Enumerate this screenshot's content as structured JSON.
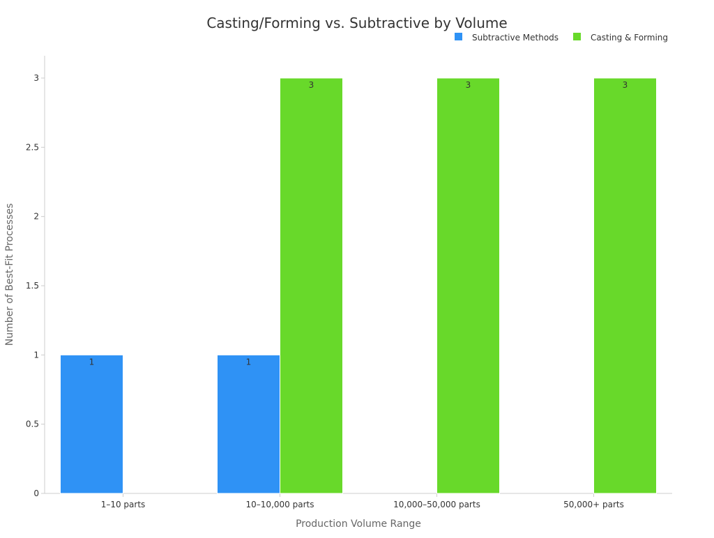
{
  "chart_data": {
    "type": "bar",
    "title": "Casting/Forming vs. Subtractive by Volume",
    "xlabel": "Production Volume Range",
    "ylabel": "Number of Best-Fit Processes",
    "categories": [
      "1–10 parts",
      "10–10,000 parts",
      "10,000–50,000 parts",
      "50,000+ parts"
    ],
    "series": [
      {
        "name": "Subtractive Methods",
        "color": "#2f92f5",
        "values": [
          1,
          1,
          0,
          0
        ]
      },
      {
        "name": "Casting & Forming",
        "color": "#68d92a",
        "values": [
          0,
          3,
          3,
          3
        ]
      }
    ],
    "ylim": [
      0,
      3
    ],
    "yticks": [
      "0",
      "0.5",
      "1",
      "1.5",
      "2",
      "2.5",
      "3"
    ],
    "grid": false,
    "legend_position": "top-right",
    "data_labels": [
      {
        "series": 0,
        "category": 0,
        "text": "1"
      },
      {
        "series": 0,
        "category": 1,
        "text": "1"
      },
      {
        "series": 1,
        "category": 1,
        "text": "3"
      },
      {
        "series": 1,
        "category": 2,
        "text": "3"
      },
      {
        "series": 1,
        "category": 3,
        "text": "3"
      }
    ]
  }
}
